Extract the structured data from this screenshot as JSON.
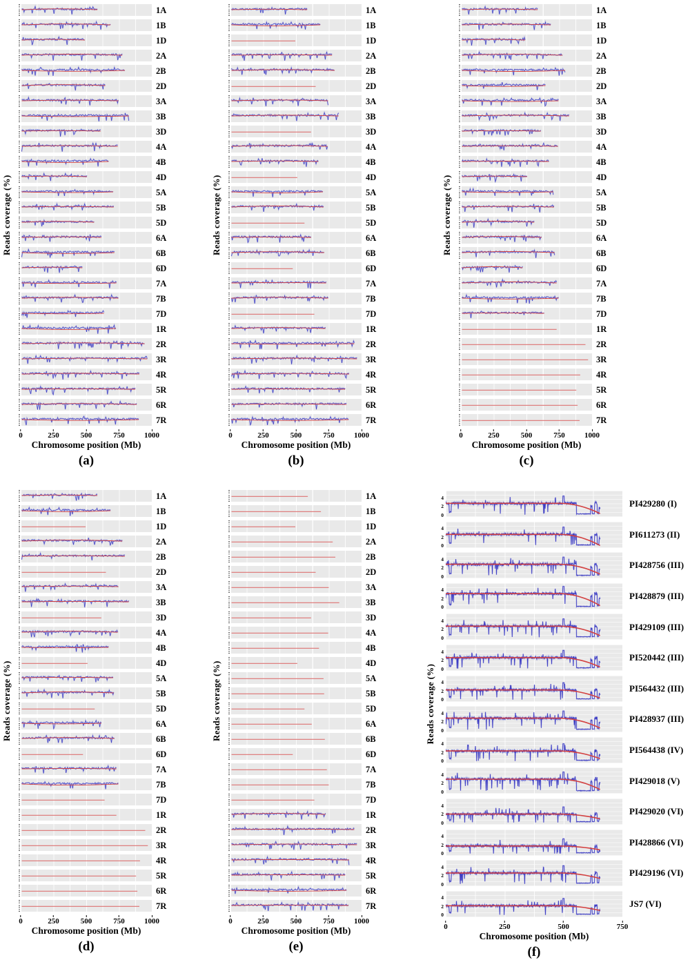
{
  "figure": {
    "colors": {
      "signal_blue": "#3d3dc4",
      "signal_blue_halo": "rgba(70,70,205,0.30)",
      "loess_red": "#d34040",
      "absent_red": "#dd7272",
      "band_bg": "#e9e9e9",
      "grid_white": "#ffffff",
      "text": "#000000"
    },
    "chromosome_length_mb": {
      "1A": 590,
      "1B": 690,
      "1D": 495,
      "2A": 780,
      "2B": 800,
      "2D": 650,
      "3A": 750,
      "3B": 830,
      "3D": 615,
      "4A": 745,
      "4B": 675,
      "4D": 510,
      "5A": 710,
      "5B": 715,
      "5D": 565,
      "6A": 620,
      "6B": 720,
      "6D": 475,
      "7A": 735,
      "7B": 750,
      "7D": 640,
      "1R": 730,
      "2R": 950,
      "3R": 970,
      "4R": 910,
      "5R": 880,
      "6R": 890,
      "7R": 905
    }
  },
  "chart_data": [
    {
      "panel": "a",
      "panel_label": "(a)",
      "type": "line",
      "x_label": "Chromosome position (Mb)",
      "y_label": "Reads coverage (%)",
      "x_range": [
        0,
        1000
      ],
      "x_ticks": [
        0,
        250,
        500,
        750,
        1000
      ],
      "tracks": [
        {
          "label": "1A",
          "coverage": "present"
        },
        {
          "label": "1B",
          "coverage": "present"
        },
        {
          "label": "1D",
          "coverage": "present"
        },
        {
          "label": "2A",
          "coverage": "present"
        },
        {
          "label": "2B",
          "coverage": "present"
        },
        {
          "label": "2D",
          "coverage": "present"
        },
        {
          "label": "3A",
          "coverage": "present"
        },
        {
          "label": "3B",
          "coverage": "present"
        },
        {
          "label": "3D",
          "coverage": "present"
        },
        {
          "label": "4A",
          "coverage": "present"
        },
        {
          "label": "4B",
          "coverage": "present"
        },
        {
          "label": "4D",
          "coverage": "present"
        },
        {
          "label": "5A",
          "coverage": "present"
        },
        {
          "label": "5B",
          "coverage": "present"
        },
        {
          "label": "5D",
          "coverage": "present"
        },
        {
          "label": "6A",
          "coverage": "present"
        },
        {
          "label": "6B",
          "coverage": "present"
        },
        {
          "label": "6D",
          "coverage": "present"
        },
        {
          "label": "7A",
          "coverage": "present"
        },
        {
          "label": "7B",
          "coverage": "present"
        },
        {
          "label": "7D",
          "coverage": "present"
        },
        {
          "label": "1R",
          "coverage": "present"
        },
        {
          "label": "2R",
          "coverage": "present"
        },
        {
          "label": "3R",
          "coverage": "present"
        },
        {
          "label": "4R",
          "coverage": "present"
        },
        {
          "label": "5R",
          "coverage": "present"
        },
        {
          "label": "6R",
          "coverage": "present"
        },
        {
          "label": "7R",
          "coverage": "present"
        }
      ]
    },
    {
      "panel": "b",
      "panel_label": "(b)",
      "type": "line",
      "x_label": "Chromosome position (Mb)",
      "y_label": "Reads coverage (%)",
      "x_range": [
        0,
        1000
      ],
      "x_ticks": [
        0,
        250,
        500,
        750,
        1000
      ],
      "tracks": [
        {
          "label": "1A",
          "coverage": "present"
        },
        {
          "label": "1B",
          "coverage": "present"
        },
        {
          "label": "1D",
          "coverage": "absent"
        },
        {
          "label": "2A",
          "coverage": "present"
        },
        {
          "label": "2B",
          "coverage": "present"
        },
        {
          "label": "2D",
          "coverage": "absent"
        },
        {
          "label": "3A",
          "coverage": "present"
        },
        {
          "label": "3B",
          "coverage": "present"
        },
        {
          "label": "3D",
          "coverage": "absent"
        },
        {
          "label": "4A",
          "coverage": "present"
        },
        {
          "label": "4B",
          "coverage": "present"
        },
        {
          "label": "4D",
          "coverage": "absent"
        },
        {
          "label": "5A",
          "coverage": "present"
        },
        {
          "label": "5B",
          "coverage": "present"
        },
        {
          "label": "5D",
          "coverage": "absent"
        },
        {
          "label": "6A",
          "coverage": "present"
        },
        {
          "label": "6B",
          "coverage": "present"
        },
        {
          "label": "6D",
          "coverage": "absent"
        },
        {
          "label": "7A",
          "coverage": "present"
        },
        {
          "label": "7B",
          "coverage": "present"
        },
        {
          "label": "7D",
          "coverage": "absent"
        },
        {
          "label": "1R",
          "coverage": "present"
        },
        {
          "label": "2R",
          "coverage": "present"
        },
        {
          "label": "3R",
          "coverage": "present"
        },
        {
          "label": "4R",
          "coverage": "present"
        },
        {
          "label": "5R",
          "coverage": "present"
        },
        {
          "label": "6R",
          "coverage": "present"
        },
        {
          "label": "7R",
          "coverage": "present"
        }
      ]
    },
    {
      "panel": "c",
      "panel_label": "(c)",
      "type": "line",
      "x_label": "Chromosome position (Mb)",
      "y_label": "Reads coverage (%)",
      "x_range": [
        0,
        1000
      ],
      "x_ticks": [
        0,
        250,
        500,
        750,
        1000
      ],
      "tracks": [
        {
          "label": "1A",
          "coverage": "present"
        },
        {
          "label": "1B",
          "coverage": "present"
        },
        {
          "label": "1D",
          "coverage": "present"
        },
        {
          "label": "2A",
          "coverage": "present"
        },
        {
          "label": "2B",
          "coverage": "present"
        },
        {
          "label": "2D",
          "coverage": "present"
        },
        {
          "label": "3A",
          "coverage": "present"
        },
        {
          "label": "3B",
          "coverage": "present"
        },
        {
          "label": "3D",
          "coverage": "present"
        },
        {
          "label": "4A",
          "coverage": "present"
        },
        {
          "label": "4B",
          "coverage": "present"
        },
        {
          "label": "4D",
          "coverage": "present"
        },
        {
          "label": "5A",
          "coverage": "present"
        },
        {
          "label": "5B",
          "coverage": "present"
        },
        {
          "label": "5D",
          "coverage": "present"
        },
        {
          "label": "6A",
          "coverage": "present"
        },
        {
          "label": "6B",
          "coverage": "present"
        },
        {
          "label": "6D",
          "coverage": "present"
        },
        {
          "label": "7A",
          "coverage": "present"
        },
        {
          "label": "7B",
          "coverage": "present"
        },
        {
          "label": "7D",
          "coverage": "present"
        },
        {
          "label": "1R",
          "coverage": "absent"
        },
        {
          "label": "2R",
          "coverage": "absent"
        },
        {
          "label": "3R",
          "coverage": "absent"
        },
        {
          "label": "4R",
          "coverage": "absent"
        },
        {
          "label": "5R",
          "coverage": "absent"
        },
        {
          "label": "6R",
          "coverage": "absent"
        },
        {
          "label": "7R",
          "coverage": "absent"
        }
      ]
    },
    {
      "panel": "d",
      "panel_label": "(d)",
      "type": "line",
      "x_label": "Chromosome position (Mb)",
      "y_label": "Reads coverage (%)",
      "x_range": [
        0,
        1000
      ],
      "x_ticks": [
        0,
        250,
        500,
        750,
        1000
      ],
      "tracks": [
        {
          "label": "1A",
          "coverage": "present"
        },
        {
          "label": "1B",
          "coverage": "present"
        },
        {
          "label": "1D",
          "coverage": "absent"
        },
        {
          "label": "2A",
          "coverage": "present"
        },
        {
          "label": "2B",
          "coverage": "present"
        },
        {
          "label": "2D",
          "coverage": "absent"
        },
        {
          "label": "3A",
          "coverage": "present"
        },
        {
          "label": "3B",
          "coverage": "present"
        },
        {
          "label": "3D",
          "coverage": "absent"
        },
        {
          "label": "4A",
          "coverage": "present"
        },
        {
          "label": "4B",
          "coverage": "present"
        },
        {
          "label": "4D",
          "coverage": "absent"
        },
        {
          "label": "5A",
          "coverage": "present"
        },
        {
          "label": "5B",
          "coverage": "present"
        },
        {
          "label": "5D",
          "coverage": "absent"
        },
        {
          "label": "6A",
          "coverage": "present"
        },
        {
          "label": "6B",
          "coverage": "present"
        },
        {
          "label": "6D",
          "coverage": "absent"
        },
        {
          "label": "7A",
          "coverage": "present"
        },
        {
          "label": "7B",
          "coverage": "present"
        },
        {
          "label": "7D",
          "coverage": "absent"
        },
        {
          "label": "1R",
          "coverage": "absent"
        },
        {
          "label": "2R",
          "coverage": "absent"
        },
        {
          "label": "3R",
          "coverage": "absent"
        },
        {
          "label": "4R",
          "coverage": "absent"
        },
        {
          "label": "5R",
          "coverage": "absent"
        },
        {
          "label": "6R",
          "coverage": "absent"
        },
        {
          "label": "7R",
          "coverage": "absent"
        }
      ]
    },
    {
      "panel": "e",
      "panel_label": "(e)",
      "type": "line",
      "x_label": "Chromosome position (Mb)",
      "y_label": "Reads coverage (%)",
      "x_range": [
        0,
        1000
      ],
      "x_ticks": [
        0,
        250,
        500,
        750,
        1000
      ],
      "tracks": [
        {
          "label": "1A",
          "coverage": "absent"
        },
        {
          "label": "1B",
          "coverage": "absent"
        },
        {
          "label": "1D",
          "coverage": "absent"
        },
        {
          "label": "2A",
          "coverage": "absent"
        },
        {
          "label": "2B",
          "coverage": "absent"
        },
        {
          "label": "2D",
          "coverage": "absent"
        },
        {
          "label": "3A",
          "coverage": "absent"
        },
        {
          "label": "3B",
          "coverage": "absent"
        },
        {
          "label": "3D",
          "coverage": "absent"
        },
        {
          "label": "4A",
          "coverage": "absent"
        },
        {
          "label": "4B",
          "coverage": "absent"
        },
        {
          "label": "4D",
          "coverage": "absent"
        },
        {
          "label": "5A",
          "coverage": "absent"
        },
        {
          "label": "5B",
          "coverage": "absent"
        },
        {
          "label": "5D",
          "coverage": "absent"
        },
        {
          "label": "6A",
          "coverage": "absent"
        },
        {
          "label": "6B",
          "coverage": "absent"
        },
        {
          "label": "6D",
          "coverage": "absent"
        },
        {
          "label": "7A",
          "coverage": "absent"
        },
        {
          "label": "7B",
          "coverage": "absent"
        },
        {
          "label": "7D",
          "coverage": "absent"
        },
        {
          "label": "1R",
          "coverage": "present"
        },
        {
          "label": "2R",
          "coverage": "present"
        },
        {
          "label": "3R",
          "coverage": "present"
        },
        {
          "label": "4R",
          "coverage": "present"
        },
        {
          "label": "5R",
          "coverage": "present"
        },
        {
          "label": "6R",
          "coverage": "present"
        },
        {
          "label": "7R",
          "coverage": "present"
        }
      ]
    },
    {
      "panel": "f",
      "panel_label": "(f)",
      "type": "line",
      "x_label": "Chromosome position (Mb)",
      "y_label": "Reads coverage (%)",
      "x_range": [
        0,
        750
      ],
      "x_ticks": [
        0,
        250,
        500,
        750
      ],
      "y_ticks": [
        4,
        2,
        0
      ],
      "y_range": [
        0,
        5
      ],
      "signal_end_mb": 655,
      "dropout_region_mb": [
        555,
        615
      ],
      "tracks": [
        {
          "label": "PI429280 (I)",
          "baseline_pct": 2.7,
          "trend_end_pct": 0.3
        },
        {
          "label": "PI611273 (II)",
          "baseline_pct": 2.7,
          "trend_end_pct": 0.1
        },
        {
          "label": "PI428756 (III)",
          "baseline_pct": 2.8,
          "trend_end_pct": 0.5
        },
        {
          "label": "PI428879 (III)",
          "baseline_pct": 3.2,
          "trend_end_pct": 0.4
        },
        {
          "label": "PI429109 (III)",
          "baseline_pct": 2.7,
          "trend_end_pct": 0.5
        },
        {
          "label": "PI520442 (III)",
          "baseline_pct": 2.6,
          "trend_end_pct": 0.4
        },
        {
          "label": "PI564432 (III)",
          "baseline_pct": 2.3,
          "trend_end_pct": 0.4
        },
        {
          "label": "PI428937 (III)",
          "baseline_pct": 2.8,
          "trend_end_pct": 0.5
        },
        {
          "label": "PI564438 (IV)",
          "baseline_pct": 2.4,
          "trend_end_pct": 0.6
        },
        {
          "label": "PI429018 (V)",
          "baseline_pct": 2.9,
          "trend_end_pct": 0.5
        },
        {
          "label": "PI429020 (VI)",
          "baseline_pct": 2.0,
          "trend_end_pct": 0.9
        },
        {
          "label": "PI428866 (VI)",
          "baseline_pct": 1.8,
          "trend_end_pct": 0.9
        },
        {
          "label": "PI429196 (VI)",
          "baseline_pct": 2.6,
          "trend_end_pct": 1.3
        },
        {
          "label": "JS7 (VI)",
          "baseline_pct": 2.2,
          "trend_end_pct": 1.1
        }
      ]
    }
  ]
}
